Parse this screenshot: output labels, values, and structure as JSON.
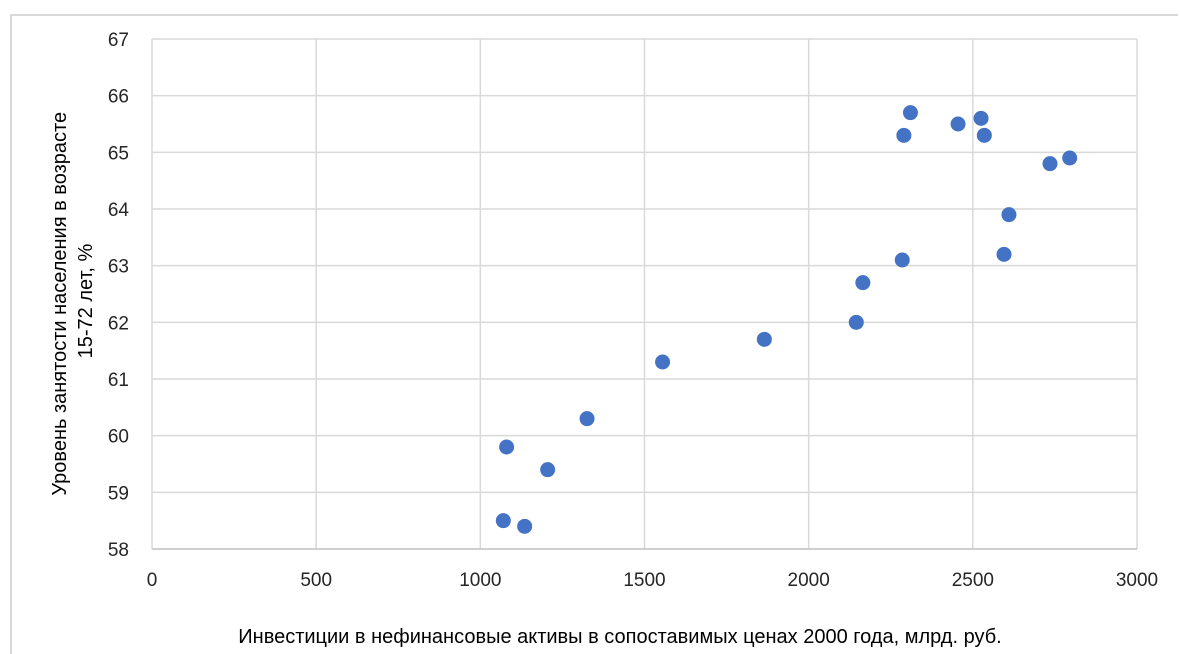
{
  "chart_data": {
    "type": "scatter",
    "title": "",
    "xlabel": "Инвестиции в нефинансовые активы в сопоставимых ценах 2000 года, млрд. руб.",
    "ylabel_lines": [
      "Уровень занятости населения в возрасте",
      "15-72 лет, %"
    ],
    "xlim": [
      0,
      3000
    ],
    "ylim": [
      58,
      67
    ],
    "xticks": [
      0,
      500,
      1000,
      1500,
      2000,
      2500,
      3000
    ],
    "yticks": [
      58,
      59,
      60,
      61,
      62,
      63,
      64,
      65,
      66,
      67
    ],
    "grid": true,
    "legend": "none",
    "marker_color": "#4472c4",
    "points": [
      {
        "x": 1070,
        "y": 58.5
      },
      {
        "x": 1135,
        "y": 58.4
      },
      {
        "x": 1080,
        "y": 59.8
      },
      {
        "x": 1205,
        "y": 59.4
      },
      {
        "x": 1325,
        "y": 60.3
      },
      {
        "x": 1555,
        "y": 61.3
      },
      {
        "x": 1865,
        "y": 61.7
      },
      {
        "x": 2145,
        "y": 62.0
      },
      {
        "x": 2165,
        "y": 62.7
      },
      {
        "x": 2285,
        "y": 63.1
      },
      {
        "x": 2290,
        "y": 65.3
      },
      {
        "x": 2310,
        "y": 65.7
      },
      {
        "x": 2455,
        "y": 65.5
      },
      {
        "x": 2525,
        "y": 65.6
      },
      {
        "x": 2535,
        "y": 65.3
      },
      {
        "x": 2595,
        "y": 63.2
      },
      {
        "x": 2610,
        "y": 63.9
      },
      {
        "x": 2735,
        "y": 64.8
      },
      {
        "x": 2795,
        "y": 64.9
      }
    ]
  }
}
